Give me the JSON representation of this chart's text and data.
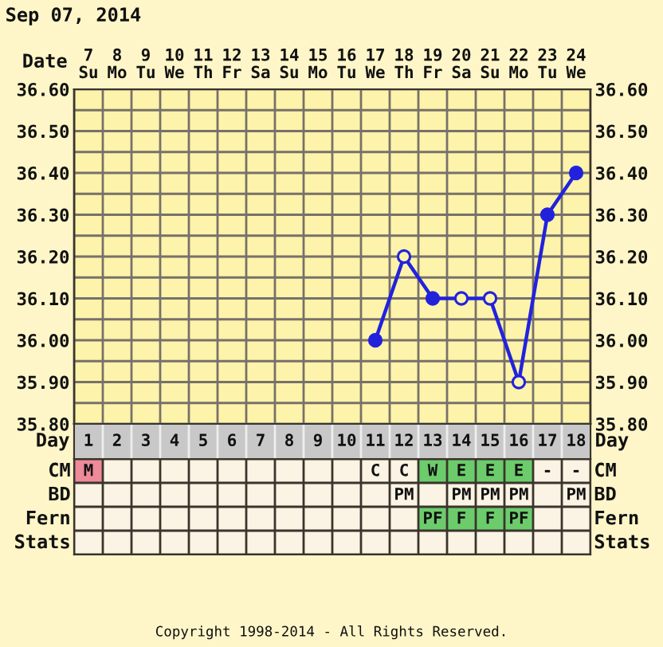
{
  "chart_data": [
    {
      "type": "line",
      "title": "Sep 07, 2014",
      "xlabel": "Day",
      "x2label": "Date",
      "xlim": [
        0.5,
        18.5
      ],
      "xticks": [
        1,
        2,
        3,
        4,
        5,
        6,
        7,
        8,
        9,
        10,
        11,
        12,
        13,
        14,
        15,
        16,
        17,
        18
      ],
      "x2lim": [
        6.5,
        24.5
      ],
      "x2ticks": [
        {
          "value": 7,
          "label": "7\nSu"
        },
        {
          "value": 8,
          "label": "8\nMo"
        },
        {
          "value": 9,
          "label": "9\nTu"
        },
        {
          "value": 10,
          "label": "10\nWe"
        },
        {
          "value": 11,
          "label": "11\nTh"
        },
        {
          "value": 12,
          "label": "12\nFr"
        },
        {
          "value": 13,
          "label": "13\nSa"
        },
        {
          "value": 14,
          "label": "14\nSu"
        },
        {
          "value": 15,
          "label": "15\nMo"
        },
        {
          "value": 16,
          "label": "16\nTu"
        },
        {
          "value": 17,
          "label": "17\nWe"
        },
        {
          "value": 18,
          "label": "18\nTh"
        },
        {
          "value": 19,
          "label": "19\nFr"
        },
        {
          "value": 20,
          "label": "20\nSa"
        },
        {
          "value": 21,
          "label": "21\nSu"
        },
        {
          "value": 22,
          "label": "22\nMo"
        },
        {
          "value": 23,
          "label": "23\nTu"
        },
        {
          "value": 24,
          "label": "24\nWe"
        }
      ],
      "series": [
        {
          "color": "#2222dd",
          "x": [
            11,
            12,
            13,
            14,
            15,
            16,
            17,
            18
          ],
          "values": [
            36.0,
            36.2,
            36.1,
            36.1,
            36.1,
            35.9,
            36.3,
            36.4
          ],
          "colors": [
            "#2222dd",
            null,
            "#2222dd",
            null,
            null,
            null,
            "#2222dd",
            "#2222dd"
          ]
        }
      ],
      "ylim": [
        35.8,
        36.6
      ],
      "yticks": [
        {
          "value": 35.8,
          "label": "35.80"
        },
        {
          "value": 35.85,
          "label": null
        },
        {
          "value": 35.9,
          "label": "35.90"
        },
        {
          "value": 35.95,
          "label": null
        },
        {
          "value": 36.0,
          "label": "36.00"
        },
        {
          "value": 36.05,
          "label": null
        },
        {
          "value": 36.1,
          "label": "36.10"
        },
        {
          "value": 36.15,
          "label": null
        },
        {
          "value": 36.2,
          "label": "36.20"
        },
        {
          "value": 36.25,
          "label": null
        },
        {
          "value": 36.3,
          "label": "36.30"
        },
        {
          "value": 36.35,
          "label": null
        },
        {
          "value": 36.4,
          "label": "36.40"
        },
        {
          "value": 36.45,
          "label": null
        },
        {
          "value": 36.5,
          "label": "36.50"
        },
        {
          "value": 36.55,
          "label": null
        },
        {
          "value": 36.6,
          "label": "36.60"
        }
      ],
      "y2lim": [
        35.8,
        36.6
      ],
      "y2ticks": [
        {
          "value": 35.8,
          "label": "35.80"
        },
        {
          "value": 35.85,
          "label": null
        },
        {
          "value": 35.9,
          "label": "35.90"
        },
        {
          "value": 35.95,
          "label": null
        },
        {
          "value": 36.0,
          "label": "36.00"
        },
        {
          "value": 36.05,
          "label": null
        },
        {
          "value": 36.1,
          "label": "36.10"
        },
        {
          "value": 36.15,
          "label": null
        },
        {
          "value": 36.2,
          "label": "36.20"
        },
        {
          "value": 36.25,
          "label": null
        },
        {
          "value": 36.3,
          "label": "36.30"
        },
        {
          "value": 36.35,
          "label": null
        },
        {
          "value": 36.4,
          "label": "36.40"
        },
        {
          "value": 36.45,
          "label": null
        },
        {
          "value": 36.5,
          "label": "36.50"
        },
        {
          "value": 36.55,
          "label": null
        },
        {
          "value": 36.6,
          "label": "36.60"
        }
      ],
      "grid": true,
      "marker": "circle"
    },
    {
      "type": "other",
      "y_categories": [
        "CM",
        "BD",
        "Fern",
        "Stats"
      ],
      "y2_categories": [
        "CM",
        "BD",
        "Fern",
        "Stats"
      ],
      "cell_labels": [
        [
          "M",
          null,
          null,
          null,
          null,
          null,
          null,
          null,
          null,
          null,
          "C",
          "C",
          "W",
          "E",
          "E",
          "E",
          "-",
          "-"
        ],
        [
          null,
          null,
          null,
          null,
          null,
          null,
          null,
          null,
          null,
          null,
          null,
          "PM",
          null,
          "PM",
          "PM",
          "PM",
          null,
          "PM"
        ],
        [
          null,
          null,
          null,
          null,
          null,
          null,
          null,
          null,
          null,
          null,
          null,
          null,
          "PF",
          "F",
          "F",
          "PF",
          null,
          null
        ],
        [
          null,
          null,
          null,
          null,
          null,
          null,
          null,
          null,
          null,
          null,
          null,
          null,
          null,
          null,
          null,
          null,
          null,
          null
        ]
      ],
      "colors": [
        [
          "#ee8a9a",
          null,
          null,
          null,
          null,
          null,
          null,
          null,
          null,
          null,
          null,
          null,
          "#6ccc6c",
          "#6ccc6c",
          "#6ccc6c",
          "#6ccc6c",
          null,
          null
        ],
        [
          null,
          null,
          null,
          null,
          null,
          null,
          null,
          null,
          null,
          null,
          null,
          null,
          null,
          null,
          null,
          null,
          null,
          null
        ],
        [
          null,
          null,
          null,
          null,
          null,
          null,
          null,
          null,
          null,
          null,
          null,
          null,
          "#6ccc6c",
          "#6ccc6c",
          "#6ccc6c",
          "#6ccc6c",
          null,
          null
        ],
        [
          null,
          null,
          null,
          null,
          null,
          null,
          null,
          null,
          null,
          null,
          null,
          null,
          null,
          null,
          null,
          null,
          null,
          null
        ]
      ],
      "annotations": [
        "Copyright 1998-2014 - All Rights Reserved."
      ]
    }
  ]
}
